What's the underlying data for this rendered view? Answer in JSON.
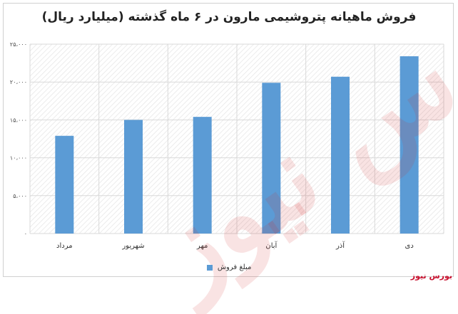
{
  "title": "فروش ماهیانه پتروشیمی مارون در ۶ ماه گذشته (میلیارد ریال)",
  "brand": "بورس نیوز",
  "watermark": "بورس نیوز",
  "legend_label": "مبلغ فروش",
  "colors": {
    "bar": "#5b9bd5",
    "grid_hatch": "#e6e6e6",
    "watermark": "#cd2828",
    "brand": "#c8102e"
  },
  "chart_data": {
    "type": "bar",
    "categories": [
      "مرداد",
      "شهریور",
      "مهر",
      "آبان",
      "آذر",
      "دی"
    ],
    "y_tick_labels": [
      "۰",
      "۵،۰۰۰",
      "۱۰،۰۰۰",
      "۱۵،۰۰۰",
      "۲۰،۰۰۰",
      "۲۵،۰۰۰"
    ],
    "yticks": [
      0,
      5000,
      10000,
      15000,
      20000,
      25000
    ],
    "series": [
      {
        "name": "مبلغ فروش",
        "values": [
          12900,
          15000,
          15400,
          19900,
          20700,
          23400
        ]
      }
    ],
    "ylim": [
      0,
      25000
    ],
    "grid": true,
    "legend": "bottom"
  }
}
